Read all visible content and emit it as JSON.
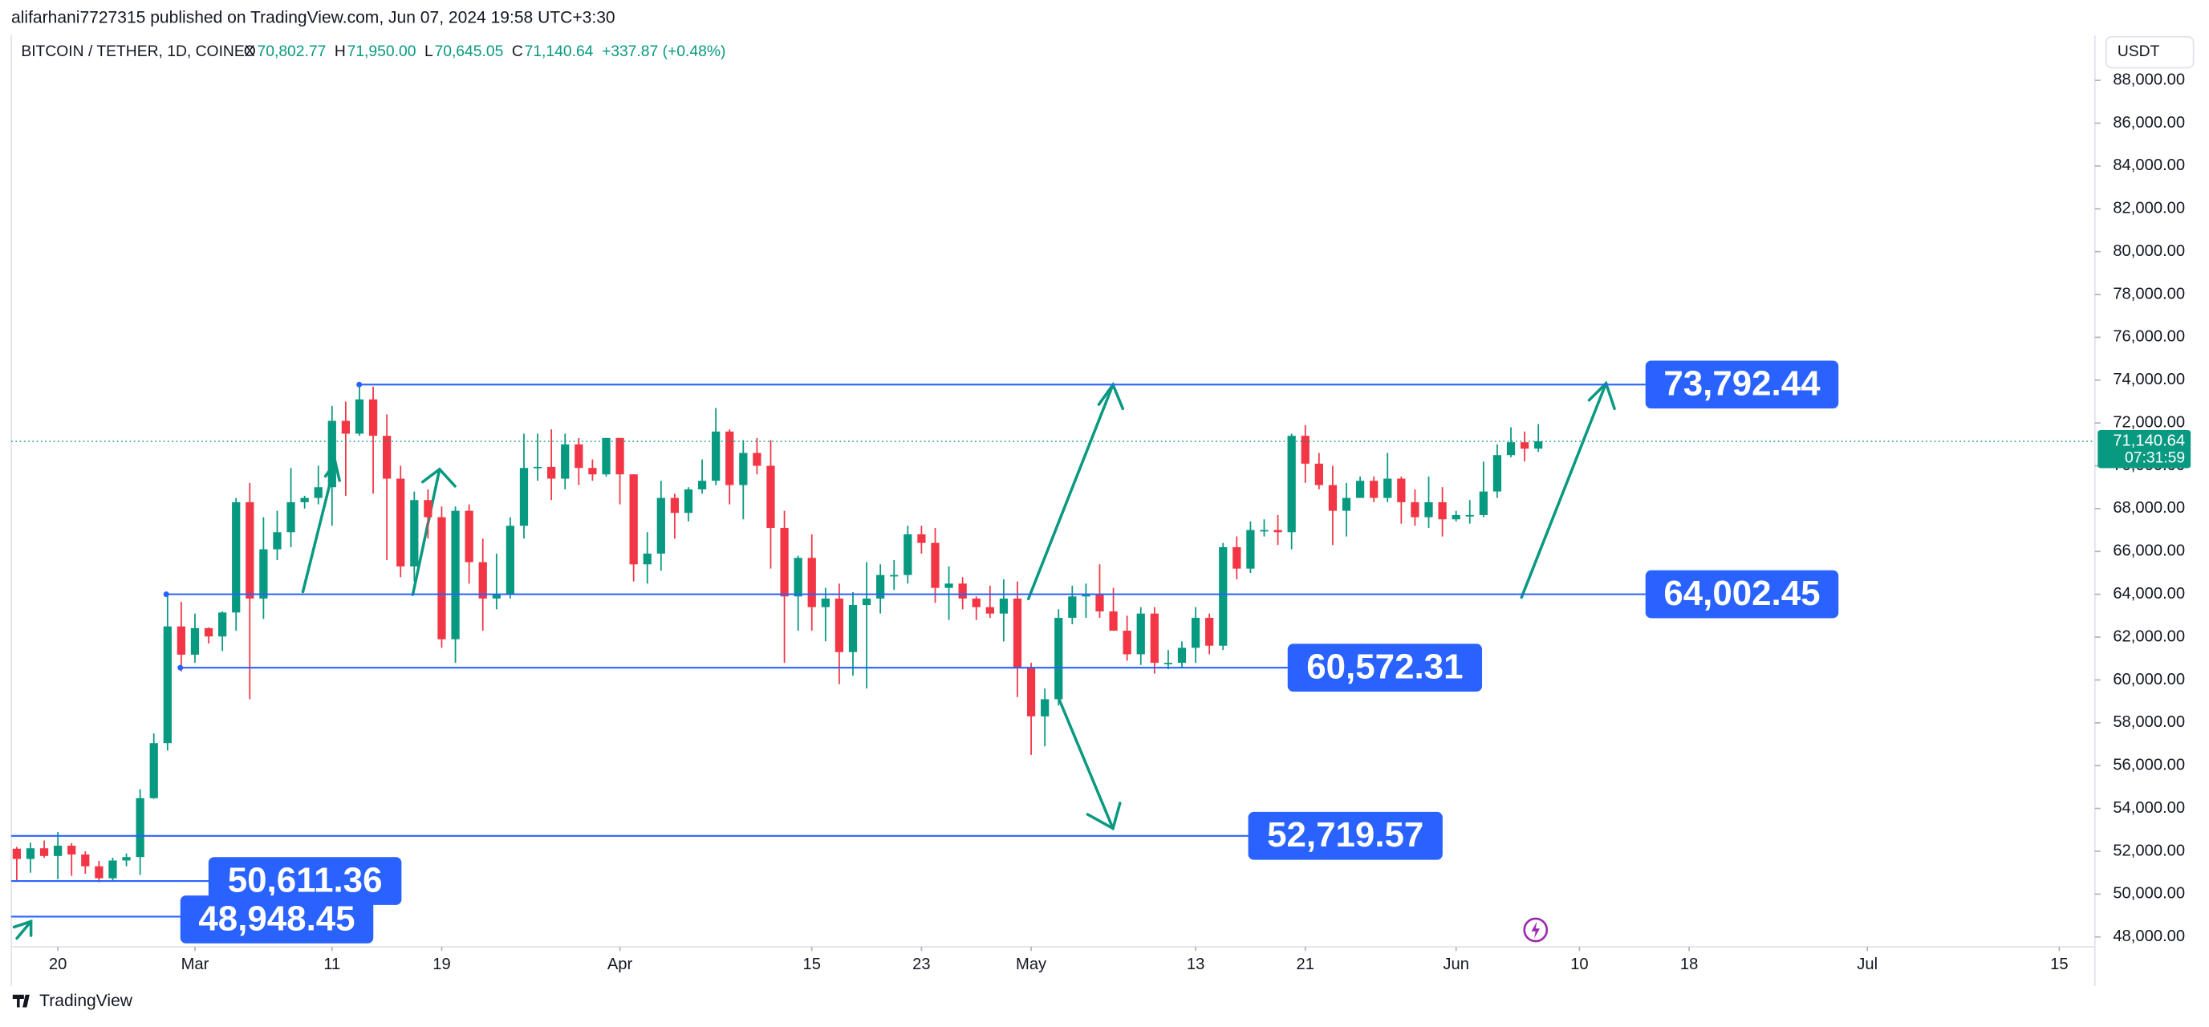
{
  "header": {
    "publisher": "alifarhani7727315 published on TradingView.com, Jun 07, 2024 19:58 UTC+3:30",
    "brand": "TradingView",
    "currency_button": "USDT"
  },
  "chart_data": {
    "type": "candlestick",
    "symbol": "BITCOIN / TETHER, 1D, COINEX",
    "ohlc_legend": [
      {
        "key": "O",
        "value": "70,802.77"
      },
      {
        "key": "H",
        "value": "71,950.00"
      },
      {
        "key": "L",
        "value": "70,645.05"
      },
      {
        "key": "C",
        "value": "71,140.64"
      }
    ],
    "change": "+337.87 (+0.48%)",
    "up_color": "#089981",
    "down_color": "#f23645",
    "level_color": "#2962ff",
    "grid": false,
    "open": [
      52120,
      51640,
      52140,
      51780,
      52260,
      51850,
      51300,
      50740,
      51570,
      51730,
      54480,
      57050,
      62500,
      61180,
      62420,
      62030,
      63150,
      68300,
      63800,
      66100,
      66900,
      68300,
      68500,
      69000,
      72100,
      71500,
      73100,
      71400,
      69400,
      65300,
      68400,
      67600,
      61900,
      67900,
      65500,
      63800,
      64000,
      67200,
      69900,
      69950,
      69400,
      71000,
      69900,
      69600,
      71300,
      69600,
      65400,
      65900,
      68500,
      67800,
      68900,
      69300,
      71600,
      69100,
      70600,
      70000,
      67100,
      63900,
      65700,
      63400,
      63800,
      61300,
      63500,
      63800,
      64900,
      64900,
      66800,
      66400,
      64300,
      64500,
      63800,
      63400,
      63100,
      63800,
      60600,
      58300,
      59100,
      62900,
      63900,
      64000,
      63200,
      62300,
      61200,
      63100,
      60800,
      60800,
      61500,
      62900,
      61600,
      66200,
      65200,
      67000,
      67000,
      66900,
      71400,
      70100,
      69100,
      67900,
      68500,
      69300,
      68500,
      69400,
      68300,
      67600,
      68300,
      67500,
      67700,
      67700,
      68800,
      70500,
      71100,
      70802.77
    ],
    "high": [
      52200,
      52400,
      52500,
      52900,
      52380,
      52000,
      51550,
      51700,
      51900,
      54900,
      57500,
      64000,
      63650,
      63100,
      62450,
      63200,
      68500,
      69200,
      67600,
      67900,
      69900,
      68600,
      70000,
      72800,
      73000,
      73800,
      73700,
      72400,
      70000,
      68800,
      68900,
      68100,
      68100,
      68200,
      66600,
      65900,
      67600,
      71500,
      71500,
      71700,
      71500,
      71300,
      70300,
      71300,
      71300,
      69600,
      66900,
      69300,
      68700,
      69000,
      70300,
      72700,
      71700,
      71200,
      71300,
      71200,
      67900,
      65800,
      66800,
      64300,
      64500,
      64100,
      65500,
      65400,
      65600,
      67200,
      67200,
      67100,
      65300,
      64800,
      63900,
      64400,
      64700,
      64600,
      60800,
      59600,
      63300,
      64400,
      64500,
      65400,
      64300,
      63000,
      63400,
      63400,
      61400,
      61800,
      63400,
      63100,
      66400,
      66700,
      67400,
      67500,
      67700,
      71500,
      71900,
      70600,
      70000,
      69200,
      69500,
      69500,
      70600,
      69500,
      68900,
      69500,
      69000,
      67900,
      68400,
      70200,
      71000,
      71800,
      71600,
      71950
    ],
    "low": [
      50650,
      51000,
      51700,
      50700,
      50850,
      50950,
      50550,
      50600,
      51300,
      50900,
      54450,
      56700,
      60400,
      60800,
      61700,
      61350,
      62300,
      59100,
      62850,
      65600,
      66200,
      68000,
      68200,
      67200,
      68600,
      71400,
      68700,
      65600,
      64800,
      64600,
      66600,
      61500,
      60800,
      64500,
      62300,
      63300,
      63800,
      66600,
      69300,
      68400,
      68900,
      69100,
      69300,
      69500,
      68200,
      64600,
      64500,
      65100,
      66600,
      67400,
      68700,
      69100,
      68200,
      67500,
      69600,
      65200,
      60800,
      62300,
      62300,
      61800,
      59800,
      60200,
      59600,
      63100,
      64200,
      64500,
      65900,
      63600,
      62800,
      63300,
      62800,
      62900,
      61800,
      59200,
      56500,
      56900,
      58800,
      62600,
      62900,
      62900,
      62300,
      60900,
      60700,
      60300,
      60500,
      60600,
      60800,
      61200,
      61400,
      64700,
      65000,
      66700,
      66300,
      66100,
      69200,
      68900,
      66300,
      66700,
      68500,
      68300,
      68300,
      67300,
      67200,
      67100,
      66700,
      67400,
      67300,
      67600,
      68500,
      70400,
      70200,
      70645.05
    ],
    "close": [
      51640,
      52140,
      51780,
      52260,
      51850,
      51300,
      50740,
      51570,
      51730,
      54480,
      57050,
      62500,
      61180,
      62420,
      62030,
      63150,
      68300,
      63800,
      66100,
      66900,
      68300,
      68500,
      69000,
      72100,
      71500,
      73100,
      71400,
      69400,
      65300,
      68400,
      67600,
      61900,
      67900,
      65500,
      63800,
      64000,
      67200,
      69900,
      69950,
      69400,
      71000,
      69900,
      69600,
      71300,
      69600,
      65400,
      65900,
      68500,
      67800,
      68900,
      69300,
      71600,
      69100,
      70600,
      70000,
      67100,
      63900,
      65700,
      63400,
      63800,
      61300,
      63500,
      63800,
      64900,
      64900,
      66800,
      66400,
      64300,
      64500,
      63800,
      63400,
      63100,
      63800,
      60600,
      58300,
      59100,
      62900,
      63900,
      64000,
      63200,
      62300,
      61200,
      63100,
      60800,
      60800,
      61500,
      62900,
      61600,
      66200,
      65200,
      67000,
      67000,
      66900,
      71400,
      70100,
      69100,
      67900,
      68500,
      69300,
      68500,
      69400,
      68300,
      67600,
      68300,
      67500,
      67700,
      67700,
      68800,
      70500,
      71100,
      70800,
      71140.64
    ],
    "xlim": [
      -0.4,
      151.6
    ],
    "xticks": [
      {
        "value": 3,
        "label": "20"
      },
      {
        "value": 13,
        "label": "Mar"
      },
      {
        "value": 23,
        "label": "11"
      },
      {
        "value": 31,
        "label": "19"
      },
      {
        "value": 44,
        "label": "Apr"
      },
      {
        "value": 58,
        "label": "15"
      },
      {
        "value": 66,
        "label": "23"
      },
      {
        "value": 74,
        "label": "May"
      },
      {
        "value": 86,
        "label": "13"
      },
      {
        "value": 94,
        "label": "21"
      },
      {
        "value": 105,
        "label": "Jun"
      },
      {
        "value": 114,
        "label": "10"
      },
      {
        "value": 122,
        "label": "18"
      },
      {
        "value": 135,
        "label": "Jul"
      },
      {
        "value": 149,
        "label": "15"
      }
    ],
    "ylim": [
      47540,
      90100
    ],
    "yticks": [
      {
        "value": 48000,
        "label": "48,000.00"
      },
      {
        "value": 50000,
        "label": "50,000.00"
      },
      {
        "value": 52000,
        "label": "52,000.00"
      },
      {
        "value": 54000,
        "label": "54,000.00"
      },
      {
        "value": 56000,
        "label": "56,000.00"
      },
      {
        "value": 58000,
        "label": "58,000.00"
      },
      {
        "value": 60000,
        "label": "60,000.00"
      },
      {
        "value": 62000,
        "label": "62,000.00"
      },
      {
        "value": 64000,
        "label": "64,000.00"
      },
      {
        "value": 66000,
        "label": "66,000.00"
      },
      {
        "value": 68000,
        "label": "68,000.00"
      },
      {
        "value": 70000,
        "label": "70,000.00"
      },
      {
        "value": 72000,
        "label": "72,000.00"
      },
      {
        "value": 74000,
        "label": "74,000.00"
      },
      {
        "value": 76000,
        "label": "76,000.00"
      },
      {
        "value": 78000,
        "label": "78,000.00"
      },
      {
        "value": 80000,
        "label": "80,000.00"
      },
      {
        "value": 82000,
        "label": "82,000.00"
      },
      {
        "value": 84000,
        "label": "84,000.00"
      },
      {
        "value": 86000,
        "label": "86,000.00"
      },
      {
        "value": 88000,
        "label": "88,000.00"
      }
    ],
    "levels": [
      {
        "value": 73792.44,
        "label": "73,792.44"
      },
      {
        "value": 64002.45,
        "label": "64,002.45"
      },
      {
        "value": 60572.31,
        "label": "60,572.31"
      },
      {
        "value": 52719.57,
        "label": "52,719.57"
      },
      {
        "value": 50611.36,
        "label": "50,611.36"
      },
      {
        "value": 48948.45,
        "label": "48,948.45"
      }
    ],
    "last_price": {
      "value": 71140.64,
      "label": "71,140.64"
    },
    "countdown": "07:31:59"
  }
}
